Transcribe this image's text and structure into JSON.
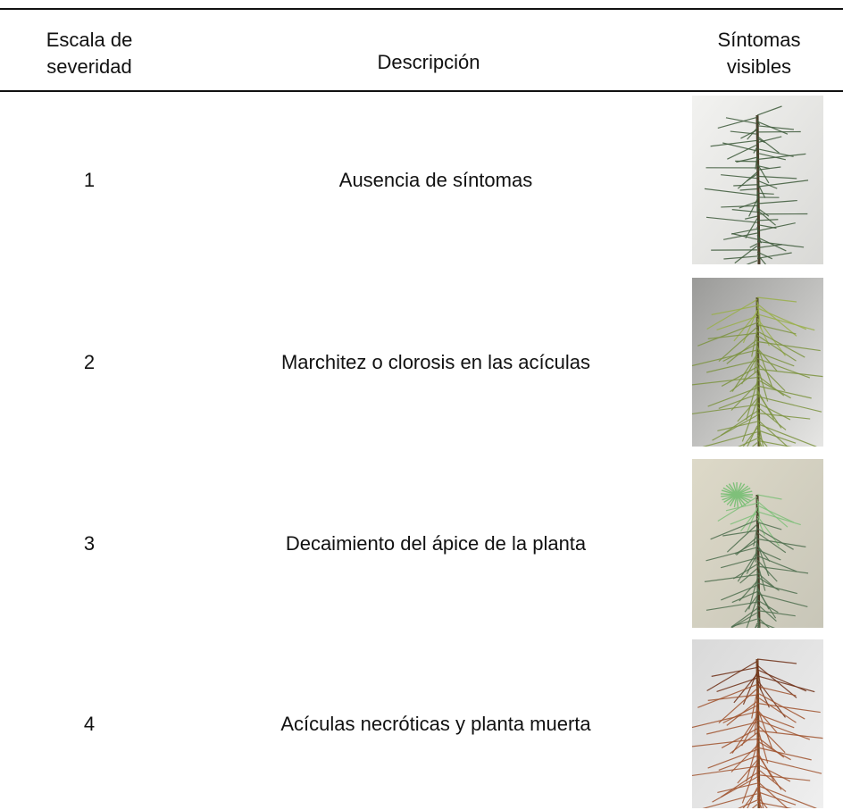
{
  "table": {
    "header": [
      [
        "Escala de",
        "severidad"
      ],
      [
        "Descripción"
      ],
      [
        "Síntomas",
        "visibles"
      ]
    ],
    "rows": [
      [
        1,
        "Ausencia de síntomas"
      ],
      [
        2,
        "Marchitez o clorosis en las acículas"
      ],
      [
        3,
        "Decaimiento del ápice de la planta"
      ],
      [
        4,
        "Acículas necróticas y planta muerta"
      ]
    ]
  }
}
